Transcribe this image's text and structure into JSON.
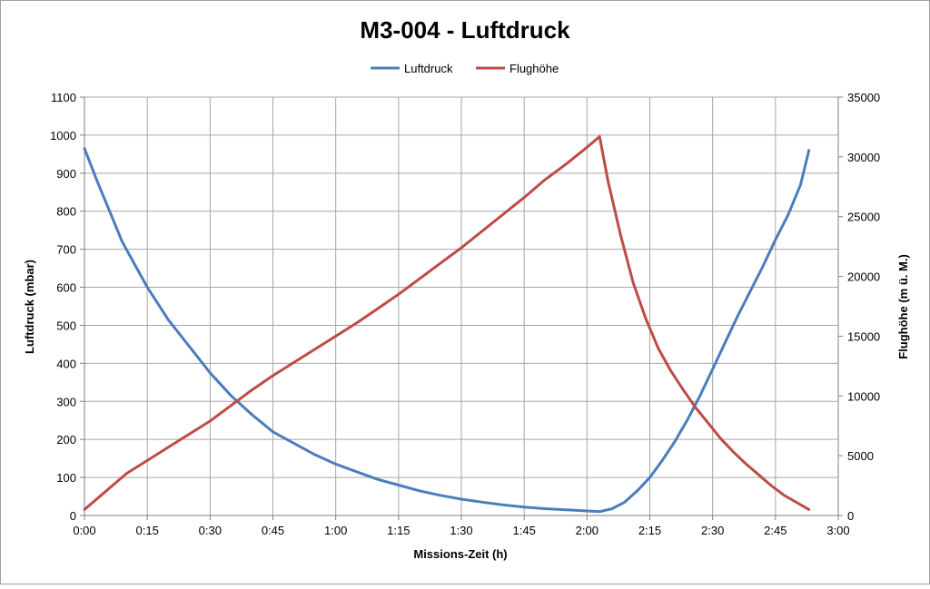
{
  "chart_data": {
    "type": "line",
    "title": "M3-004 - Luftdruck",
    "xlabel": "Missions-Zeit (h)",
    "ylabel": "Luftdruck (mbar)",
    "y2label": "Flughöhe (m ü. M.)",
    "x_unit": "h:mm",
    "xlim": [
      "0:00",
      "3:00"
    ],
    "ylim": [
      0,
      1100
    ],
    "y2lim": [
      0,
      35000
    ],
    "x_ticks": [
      "0:00",
      "0:15",
      "0:30",
      "0:45",
      "1:00",
      "1:15",
      "1:30",
      "1:45",
      "2:00",
      "2:15",
      "2:30",
      "2:45",
      "3:00"
    ],
    "y_ticks": [
      "0",
      "100",
      "200",
      "300",
      "400",
      "500",
      "600",
      "700",
      "800",
      "900",
      "1000",
      "1100"
    ],
    "y2_ticks": [
      "0",
      "5000",
      "10000",
      "15000",
      "20000",
      "25000",
      "30000",
      "35000"
    ],
    "grid": true,
    "legend_position": "top",
    "series": [
      {
        "name": "Luftdruck",
        "axis": "left",
        "color": "#4a7ebb",
        "x": [
          "0:00",
          "0:03",
          "0:06",
          "0:09",
          "0:12",
          "0:15",
          "0:20",
          "0:25",
          "0:30",
          "0:35",
          "0:40",
          "0:45",
          "0:50",
          "0:55",
          "1:00",
          "1:05",
          "1:10",
          "1:15",
          "1:20",
          "1:25",
          "1:30",
          "1:35",
          "1:40",
          "1:45",
          "1:50",
          "1:55",
          "2:00",
          "2:03",
          "2:06",
          "2:09",
          "2:12",
          "2:15",
          "2:18",
          "2:21",
          "2:24",
          "2:27",
          "2:30",
          "2:33",
          "2:36",
          "2:39",
          "2:42",
          "2:45",
          "2:48",
          "2:51",
          "2:53"
        ],
        "values": [
          965,
          880,
          800,
          720,
          660,
          600,
          515,
          445,
          375,
          315,
          265,
          220,
          190,
          160,
          135,
          115,
          95,
          80,
          65,
          53,
          43,
          35,
          28,
          22,
          18,
          15,
          12,
          10,
          18,
          35,
          65,
          100,
          145,
          195,
          252,
          315,
          385,
          455,
          525,
          590,
          655,
          725,
          790,
          870,
          960
        ]
      },
      {
        "name": "Flughöhe",
        "axis": "right",
        "color": "#be4b48",
        "x": [
          "0:00",
          "0:05",
          "0:10",
          "0:15",
          "0:20",
          "0:25",
          "0:30",
          "0:35",
          "0:40",
          "0:45",
          "0:50",
          "0:55",
          "1:00",
          "1:05",
          "1:10",
          "1:15",
          "1:20",
          "1:25",
          "1:30",
          "1:35",
          "1:40",
          "1:45",
          "1:50",
          "1:55",
          "2:00",
          "2:03",
          "2:05",
          "2:08",
          "2:11",
          "2:14",
          "2:17",
          "2:20",
          "2:23",
          "2:26",
          "2:29",
          "2:32",
          "2:35",
          "2:38",
          "2:41",
          "2:44",
          "2:47",
          "2:50",
          "2:53"
        ],
        "values": [
          500,
          2000,
          3500,
          4600,
          5700,
          6800,
          7900,
          9200,
          10500,
          11700,
          12800,
          13900,
          15000,
          16100,
          17300,
          18500,
          19800,
          21100,
          22400,
          23800,
          25200,
          26600,
          28100,
          29400,
          30800,
          31700,
          28000,
          23500,
          19500,
          16500,
          14000,
          12100,
          10500,
          9000,
          7700,
          6400,
          5300,
          4300,
          3400,
          2500,
          1700,
          1100,
          500
        ]
      }
    ]
  }
}
